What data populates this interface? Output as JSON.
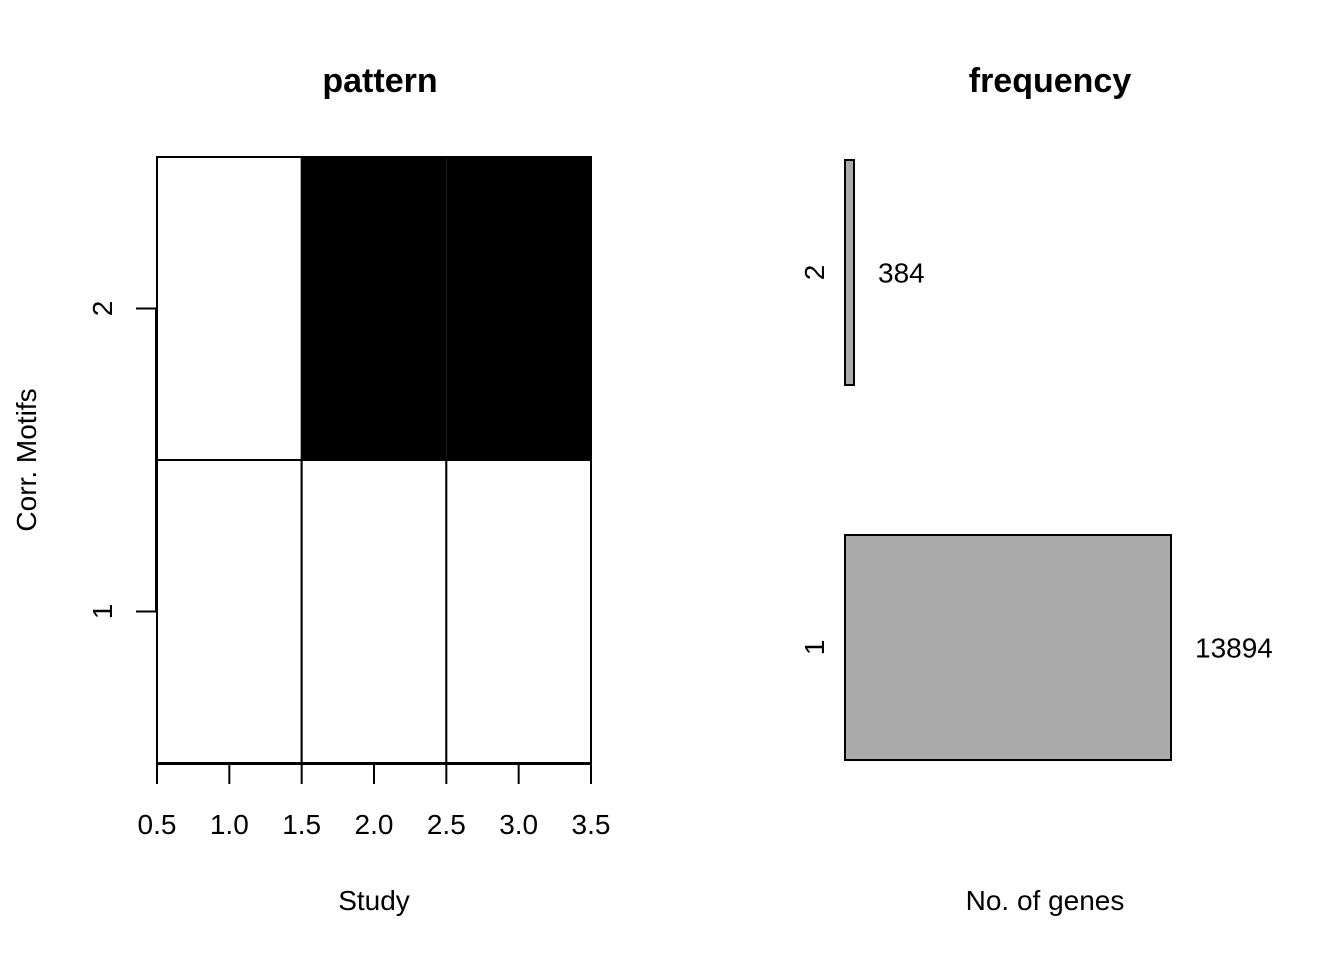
{
  "chart_data": [
    {
      "type": "heatmap",
      "title": "pattern",
      "xlabel": "Study",
      "ylabel": "Corr. Motifs",
      "xlim": [
        0.5,
        3.5
      ],
      "ylim": [
        0.5,
        2.5
      ],
      "x_ticks": [
        "0.5",
        "1.0",
        "1.5",
        "2.0",
        "2.5",
        "3.0",
        "3.5"
      ],
      "y_ticks": [
        "1",
        "2"
      ],
      "rows": [
        {
          "motif": 1,
          "values": [
            0,
            0,
            0
          ]
        },
        {
          "motif": 2,
          "values": [
            0,
            1,
            1
          ]
        }
      ],
      "colors": {
        "0": "#ffffff",
        "1": "#000000"
      }
    },
    {
      "type": "bar",
      "orientation": "horizontal",
      "title": "frequency",
      "xlabel": "No. of genes",
      "ylabel": "",
      "categories": [
        "1",
        "2"
      ],
      "values": [
        13894,
        384
      ],
      "data_labels": [
        "13894",
        "384"
      ],
      "bar_color": "#aaaaaa"
    }
  ]
}
